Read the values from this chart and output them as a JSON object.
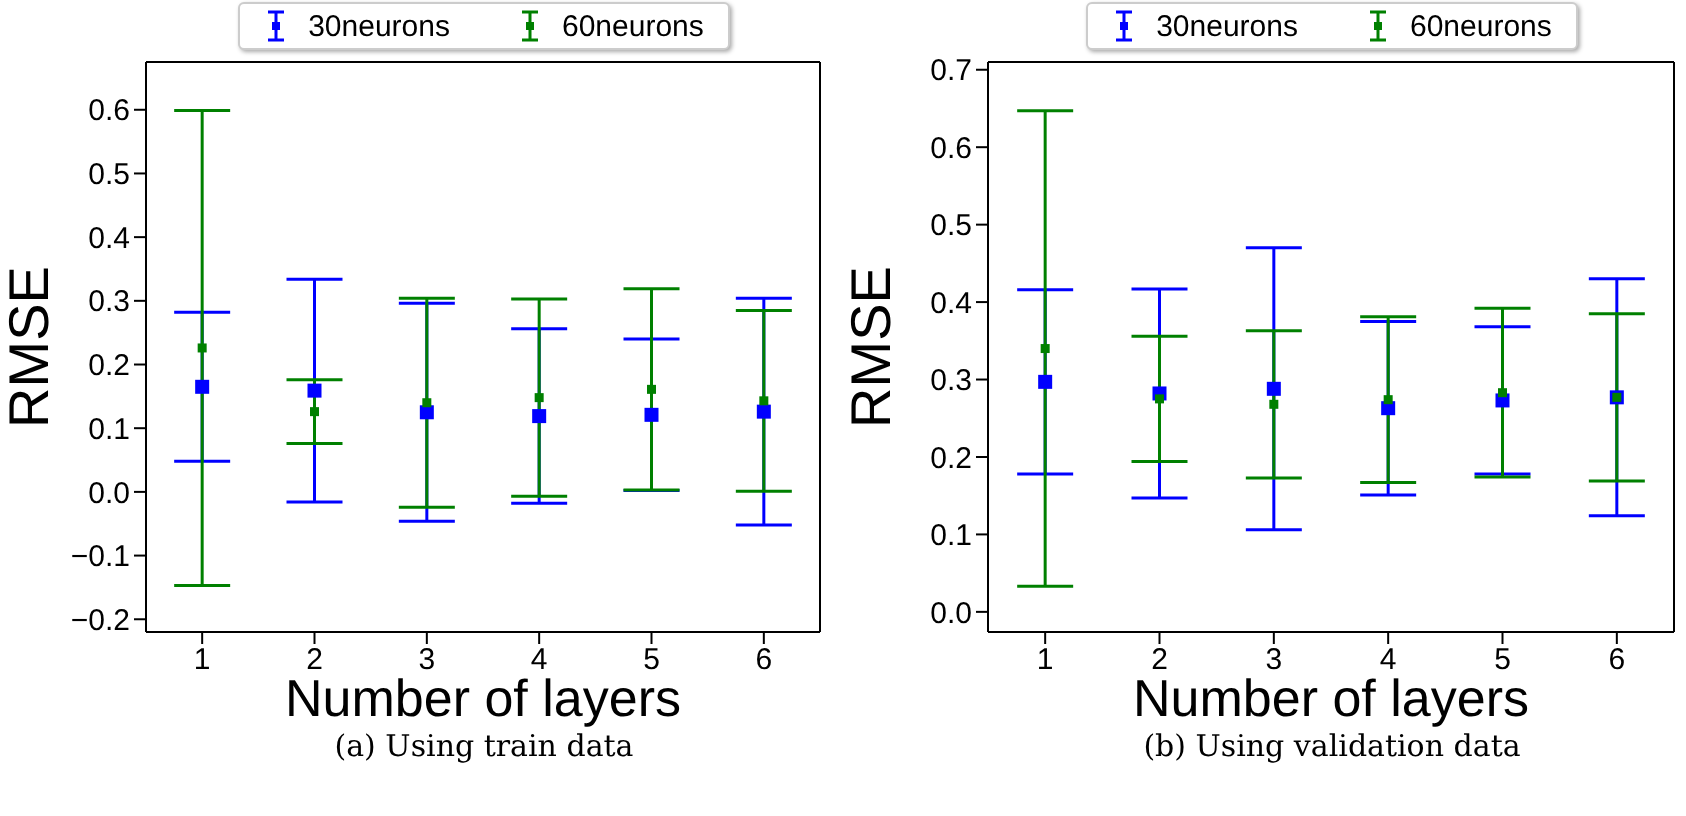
{
  "chart_data": [
    {
      "type": "scatter",
      "categories": [
        "1",
        "2",
        "3",
        "4",
        "5",
        "6"
      ],
      "xlabel": "Number of layers",
      "ylabel": "RMSE",
      "ylim": [
        -0.22,
        0.675
      ],
      "yticks": [
        {
          "value": -0.2,
          "label": "−0.2"
        },
        {
          "value": -0.1,
          "label": "−0.1"
        },
        {
          "value": 0,
          "label": "0.0"
        },
        {
          "value": 0.1,
          "label": "0.1"
        },
        {
          "value": 0.2,
          "label": "0.2"
        },
        {
          "value": 0.3,
          "label": "0.3"
        },
        {
          "value": 0.4,
          "label": "0.4"
        },
        {
          "value": 0.5,
          "label": "0.5"
        },
        {
          "value": 0.6,
          "label": "0.6"
        }
      ],
      "marker": "square",
      "legend": "top",
      "grid": false,
      "annotations": [
        "(a) Using train data"
      ],
      "series": [
        {
          "name": "30neurons",
          "color": "#0000ff",
          "values": [
            0.165,
            0.159,
            0.125,
            0.119,
            0.121,
            0.126
          ],
          "errors": [
            0.117,
            0.175,
            0.171,
            0.137,
            0.119,
            0.178
          ]
        },
        {
          "name": "60neurons",
          "color": "#008000",
          "values": [
            0.226,
            0.126,
            0.14,
            0.148,
            0.161,
            0.143
          ],
          "errors": [
            0.373,
            0.05,
            0.164,
            0.155,
            0.158,
            0.142
          ]
        }
      ]
    },
    {
      "type": "scatter",
      "categories": [
        "1",
        "2",
        "3",
        "4",
        "5",
        "6"
      ],
      "xlabel": "Number of layers",
      "ylabel": "RMSE",
      "ylim": [
        -0.026,
        0.71
      ],
      "yticks": [
        {
          "value": 0,
          "label": "0.0"
        },
        {
          "value": 0.1,
          "label": "0.1"
        },
        {
          "value": 0.2,
          "label": "0.2"
        },
        {
          "value": 0.3,
          "label": "0.3"
        },
        {
          "value": 0.4,
          "label": "0.4"
        },
        {
          "value": 0.5,
          "label": "0.5"
        },
        {
          "value": 0.6,
          "label": "0.6"
        },
        {
          "value": 0.7,
          "label": "0.7"
        }
      ],
      "marker": "square",
      "legend": "top",
      "grid": false,
      "annotations": [
        "(b) Using validation data"
      ],
      "series": [
        {
          "name": "30neurons",
          "color": "#0000ff",
          "values": [
            0.297,
            0.282,
            0.288,
            0.263,
            0.273,
            0.277
          ],
          "errors": [
            0.119,
            0.135,
            0.182,
            0.112,
            0.095,
            0.153
          ]
        },
        {
          "name": "60neurons",
          "color": "#008000",
          "values": [
            0.34,
            0.275,
            0.268,
            0.274,
            0.283,
            0.277
          ],
          "errors": [
            0.307,
            0.081,
            0.095,
            0.107,
            0.109,
            0.108
          ]
        }
      ]
    }
  ]
}
